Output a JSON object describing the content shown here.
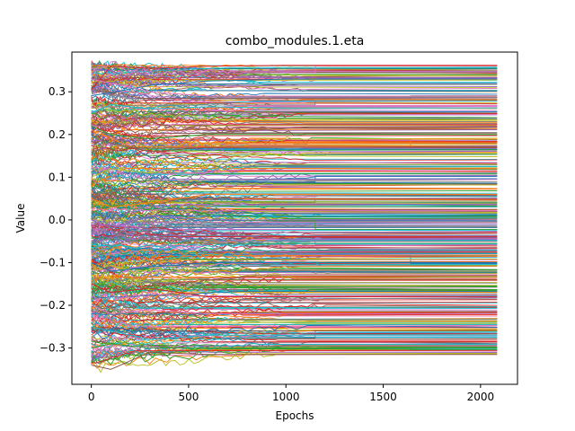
{
  "chart_data": {
    "type": "line",
    "title": "combo_modules.1.eta",
    "xlabel": "Epochs",
    "ylabel": "Value",
    "xlim": [
      -100,
      2190
    ],
    "ylim": [
      -0.385,
      0.393
    ],
    "x_ticks": [
      0,
      500,
      1000,
      1500,
      2000
    ],
    "x_tick_labels": [
      "0",
      "500",
      "1000",
      "1500",
      "2000"
    ],
    "y_ticks": [
      -0.3,
      -0.2,
      -0.1,
      0.0,
      0.1,
      0.2,
      0.3
    ],
    "y_tick_labels": [
      "−0.3",
      "−0.2",
      "−0.1",
      "0.0",
      "0.1",
      "0.2",
      "0.3"
    ],
    "grid": false,
    "legend": "none",
    "epochs_end": 2085,
    "num_series_estimate": 500,
    "value_range": [
      -0.345,
      0.362
    ],
    "final_value_range": [
      -0.315,
      0.362
    ],
    "series": [
      {
        "values": [
          0.291,
          0.298,
          0.315,
          0.325,
          0.33,
          0.33
        ]
      },
      {
        "values": [
          0.305,
          0.36,
          0.355,
          0.36,
          0.362,
          0.362
        ]
      },
      {
        "values": [
          0.33,
          0.32,
          0.3,
          0.29,
          0.29,
          0.29
        ]
      },
      {
        "values": [
          0.25,
          0.27,
          0.26,
          0.265,
          0.262,
          0.262
        ]
      },
      {
        "values": [
          0.22,
          0.2,
          0.19,
          0.2,
          0.2,
          0.2
        ]
      },
      {
        "values": [
          0.2,
          0.18,
          0.16,
          0.17,
          0.17,
          0.17
        ]
      },
      {
        "values": [
          0.1,
          0.12,
          0.11,
          0.13,
          0.13,
          0.13
        ]
      },
      {
        "values": [
          0.05,
          0.03,
          0.04,
          0.06,
          0.06,
          0.06
        ]
      },
      {
        "values": [
          0.0,
          -0.02,
          0.01,
          0.0,
          0.0,
          0.0
        ]
      },
      {
        "values": [
          -0.05,
          -0.06,
          -0.04,
          -0.05,
          -0.05,
          -0.05
        ]
      },
      {
        "values": [
          -0.1,
          -0.12,
          -0.11,
          -0.1,
          -0.1,
          -0.1
        ]
      },
      {
        "values": [
          -0.15,
          -0.17,
          -0.16,
          -0.18,
          -0.18,
          -0.18
        ]
      },
      {
        "values": [
          -0.2,
          -0.22,
          -0.21,
          -0.22,
          -0.22,
          -0.22
        ]
      },
      {
        "values": [
          -0.25,
          -0.26,
          -0.28,
          -0.27,
          -0.27,
          -0.27
        ]
      },
      {
        "values": [
          -0.3,
          -0.29,
          -0.3,
          -0.3,
          -0.3,
          -0.3
        ]
      },
      {
        "values": [
          -0.34,
          -0.35,
          -0.31,
          -0.315,
          -0.315,
          -0.315
        ]
      }
    ],
    "series_x": [
      0,
      100,
      300,
      600,
      1000,
      2085
    ]
  },
  "colors": {
    "palette": [
      "#1f77b4",
      "#ff7f0e",
      "#2ca02c",
      "#d62728",
      "#9467bd",
      "#8c564b",
      "#e377c2",
      "#7f7f7f",
      "#bcbd22",
      "#17becf"
    ],
    "axes": "#000000",
    "background": "#ffffff"
  }
}
